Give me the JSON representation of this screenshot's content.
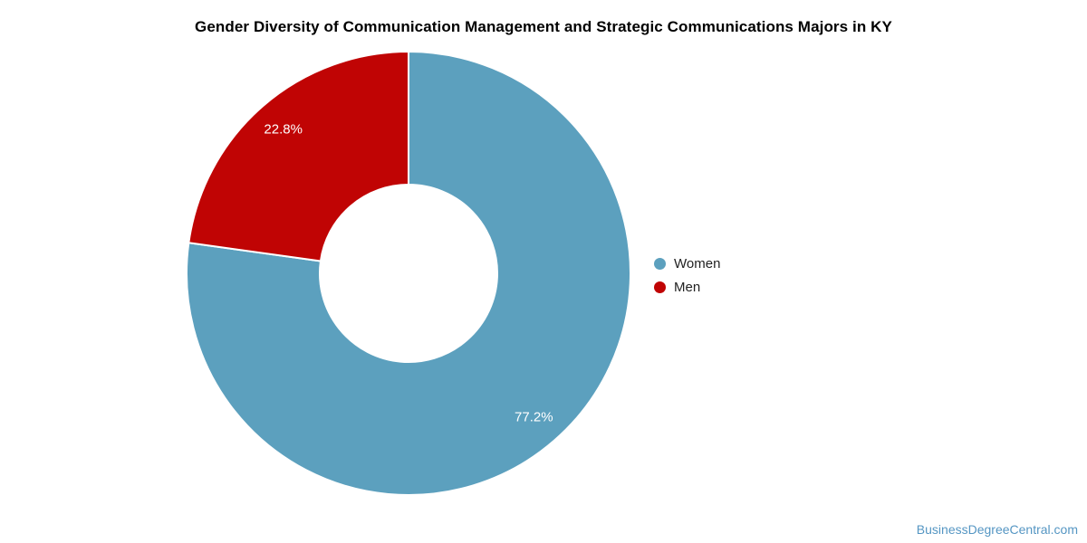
{
  "page": {
    "background": "#ffffff",
    "footer_link": "BusinessDegreeCentral.com",
    "footer_link_color": "#5596C3"
  },
  "chart_data": {
    "type": "pie",
    "donut": true,
    "inner_radius_ratio": 0.4,
    "title": "Gender Diversity of Communication Management and Strategic Communications Majors in KY",
    "categories": [
      "Women",
      "Men"
    ],
    "values": [
      77.2,
      22.8
    ],
    "display_labels": [
      "77.2%",
      "22.8%"
    ],
    "colors": [
      "#5CA0BE",
      "#C00404"
    ],
    "slice_label_color": "#ffffff",
    "legend_position": "right",
    "slice_border_color": "#ffffff"
  },
  "legend": {
    "items": [
      {
        "label": "Women",
        "color": "#5CA0BE"
      },
      {
        "label": "Men",
        "color": "#C00404"
      }
    ]
  }
}
